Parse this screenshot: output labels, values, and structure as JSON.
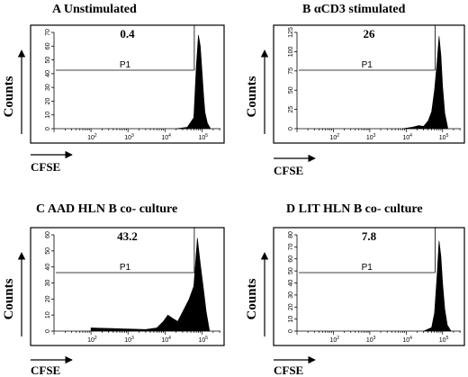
{
  "chart_data": [
    {
      "type": "histogram",
      "title": "A Unstimulated",
      "xlabel": "CFSE",
      "ylabel": "Counts",
      "x_scale": "log",
      "x_ticks": [
        "10^2",
        "10^3",
        "10^4",
        "10^5"
      ],
      "y_ticks": [
        "0",
        "10",
        "20",
        "30",
        "40",
        "50",
        "60",
        "70"
      ],
      "ylim": [
        0,
        70
      ],
      "gate": {
        "name": "P1",
        "percent": "0.4"
      },
      "x": [
        20000,
        40000,
        60000,
        70000,
        80000,
        90000,
        100000,
        110000,
        120000,
        140000,
        170000
      ],
      "values": [
        0,
        1,
        8,
        45,
        68,
        60,
        42,
        25,
        12,
        4,
        0
      ]
    },
    {
      "type": "histogram",
      "title": "B αCD3 stimulated",
      "xlabel": "CFSE",
      "ylabel": "Counts",
      "x_scale": "log",
      "x_ticks": [
        "10^2",
        "10^3",
        "10^4",
        "10^5"
      ],
      "y_ticks": [
        "0",
        "25",
        "50",
        "75",
        "100",
        "125"
      ],
      "ylim": [
        0,
        125
      ],
      "gate": {
        "name": "P1",
        "percent": "26"
      },
      "x": [
        8000,
        15000,
        22000,
        30000,
        40000,
        50000,
        60000,
        70000,
        80000,
        90000,
        100000,
        115000,
        140000
      ],
      "values": [
        0,
        2,
        4,
        3,
        10,
        22,
        50,
        85,
        120,
        95,
        55,
        20,
        0
      ]
    },
    {
      "type": "histogram",
      "title": "C AAD HLN B co- culture",
      "xlabel": "CFSE",
      "ylabel": "Counts",
      "x_scale": "log",
      "x_ticks": [
        "10^2",
        "10^3",
        "10^4",
        "10^5"
      ],
      "y_ticks": [
        "0",
        "10",
        "20",
        "30",
        "40",
        "50",
        "60"
      ],
      "ylim": [
        0,
        60
      ],
      "gate": {
        "name": "P1",
        "percent": "43.2"
      },
      "x": [
        100,
        3000,
        6000,
        9000,
        12000,
        16000,
        22000,
        30000,
        45000,
        60000,
        75000,
        90000,
        110000,
        130000,
        160000
      ],
      "values": [
        2,
        1,
        2,
        6,
        10,
        8,
        6,
        12,
        20,
        28,
        58,
        42,
        26,
        12,
        0
      ]
    },
    {
      "type": "histogram",
      "title": "D LIT HLN B co- culture",
      "xlabel": "CFSE",
      "ylabel": "Counts",
      "x_scale": "log",
      "x_ticks": [
        "10^2",
        "10^3",
        "10^4",
        "10^5"
      ],
      "y_ticks": [
        "0",
        "10",
        "20",
        "30",
        "40",
        "50",
        "60",
        "70",
        "80"
      ],
      "ylim": [
        0,
        80
      ],
      "gate": {
        "name": "P1",
        "percent": "7.8"
      },
      "x": [
        30000,
        50000,
        60000,
        70000,
        80000,
        90000,
        100000,
        115000,
        135000,
        170000
      ],
      "values": [
        0,
        3,
        15,
        45,
        75,
        62,
        40,
        18,
        5,
        0
      ]
    }
  ]
}
